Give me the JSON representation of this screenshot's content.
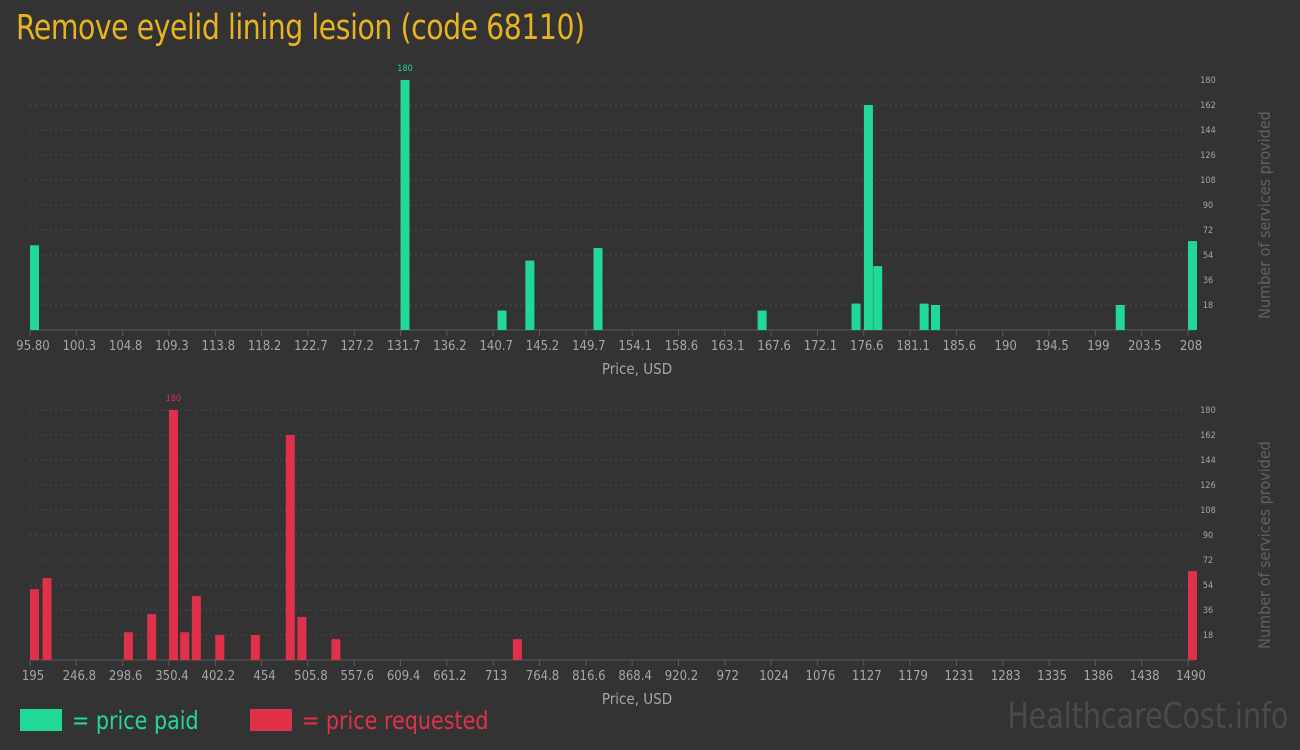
{
  "title": "Remove eyelid lining lesion (code 68110)",
  "colors": {
    "paid": "#22d896",
    "requested": "#e0314a",
    "title": "#e8b321"
  },
  "chart_data": [
    {
      "type": "bar",
      "name": "price paid",
      "xlabel": "Price, USD",
      "ylabel": "Number of services provided",
      "x_ticks": [
        "95.80",
        "100.3",
        "104.8",
        "109.3",
        "113.8",
        "118.2",
        "122.7",
        "127.2",
        "131.7",
        "136.2",
        "140.7",
        "145.2",
        "149.7",
        "154.1",
        "158.6",
        "163.1",
        "167.6",
        "172.1",
        "176.6",
        "181.1",
        "185.6",
        "190",
        "194.5",
        "199",
        "203.5",
        "208"
      ],
      "y_ticks": [
        18,
        36,
        54,
        72,
        90,
        108,
        126,
        144,
        162,
        180
      ],
      "ylim": [
        0,
        180
      ],
      "peak_label": "180",
      "grid": true,
      "bars": [
        {
          "x": 95.8,
          "y": 61
        },
        {
          "x": 131.7,
          "y": 180
        },
        {
          "x": 141.1,
          "y": 14
        },
        {
          "x": 143.8,
          "y": 50
        },
        {
          "x": 150.4,
          "y": 59
        },
        {
          "x": 166.3,
          "y": 14
        },
        {
          "x": 175.4,
          "y": 19
        },
        {
          "x": 176.6,
          "y": 162
        },
        {
          "x": 177.5,
          "y": 46
        },
        {
          "x": 182.0,
          "y": 19
        },
        {
          "x": 183.1,
          "y": 18
        },
        {
          "x": 201.0,
          "y": 18
        },
        {
          "x": 208.0,
          "y": 64
        }
      ]
    },
    {
      "type": "bar",
      "name": "price requested",
      "xlabel": "Price, USD",
      "ylabel": "Number of services provided",
      "x_ticks": [
        "195",
        "246.8",
        "298.6",
        "350.4",
        "402.2",
        "454",
        "505.8",
        "557.6",
        "609.4",
        "661.2",
        "713",
        "764.8",
        "816.6",
        "868.4",
        "920.2",
        "972",
        "1024",
        "1076",
        "1127",
        "1179",
        "1231",
        "1283",
        "1335",
        "1386",
        "1438",
        "1490"
      ],
      "y_ticks": [
        18,
        36,
        54,
        72,
        90,
        108,
        126,
        144,
        162,
        180
      ],
      "ylim": [
        0,
        180
      ],
      "peak_label": "180",
      "grid": true,
      "bars": [
        {
          "x": 195,
          "y": 51
        },
        {
          "x": 209,
          "y": 59
        },
        {
          "x": 300,
          "y": 20
        },
        {
          "x": 326,
          "y": 33
        },
        {
          "x": 350.4,
          "y": 180
        },
        {
          "x": 363,
          "y": 20
        },
        {
          "x": 376,
          "y": 46
        },
        {
          "x": 402.2,
          "y": 18
        },
        {
          "x": 442,
          "y": 18
        },
        {
          "x": 481,
          "y": 162
        },
        {
          "x": 494,
          "y": 31
        },
        {
          "x": 532,
          "y": 15
        },
        {
          "x": 735,
          "y": 15
        },
        {
          "x": 1490,
          "y": 64
        }
      ]
    }
  ],
  "legend": {
    "paid": "= price paid",
    "requested": "= price requested"
  },
  "watermark": "HealthcareCost.info"
}
